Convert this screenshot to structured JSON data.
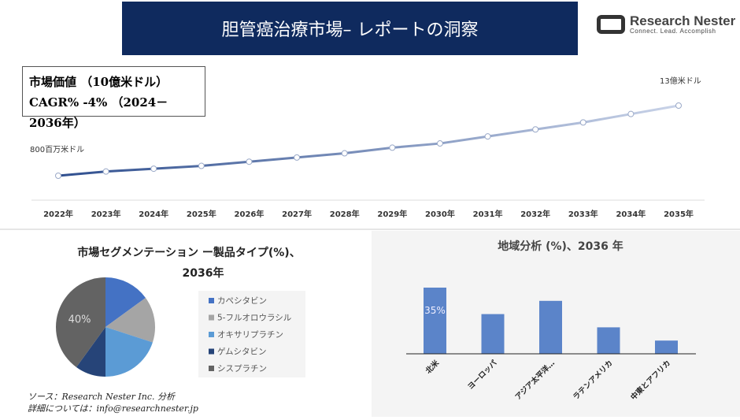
{
  "header": {
    "title": "胆管癌治療市場– レポートの洞察",
    "logo_name": "Research Nester",
    "logo_tagline": "Connect. Lead. Accomplish"
  },
  "key_box": {
    "line1": "市場価値 （10億米ドル）",
    "line2": "CAGR% -4% （2024－2036年）"
  },
  "source": {
    "line1": "ソース：Research Nester Inc. 分析",
    "line2": "詳細については：info@researchnester.jp"
  },
  "chart_data": [
    {
      "type": "line",
      "x": [
        "2022年",
        "2023年",
        "2024年",
        "2025年",
        "2026年",
        "2027年",
        "2028年",
        "2029年",
        "2030年",
        "2031年",
        "2032年",
        "2033年",
        "2034年",
        "2035年"
      ],
      "values": [
        0.8,
        0.83,
        0.85,
        0.87,
        0.9,
        0.93,
        0.96,
        1.0,
        1.03,
        1.08,
        1.13,
        1.18,
        1.24,
        1.3
      ],
      "annotations": {
        "start": "800百万米ドル",
        "end": "13億米ドル"
      },
      "colors": {
        "start": "#2f4f8f",
        "end": "#c9d3e8"
      }
    },
    {
      "type": "pie",
      "title": "市場セグメンテーション ー製品タイプ(%)、",
      "subtitle": "2036年",
      "categories": [
        "カペシタビン",
        "5-フルオロウラシル",
        "オキサリプラチン",
        "ゲムシタビン",
        "シスプラチン"
      ],
      "values": [
        15,
        15,
        20,
        10,
        40
      ],
      "data_labels": [
        "",
        "",
        "",
        "",
        "40%"
      ],
      "colors": [
        "#4472c4",
        "#a5a5a5",
        "#5b9bd5",
        "#264478",
        "#636363"
      ],
      "legend": "right"
    },
    {
      "type": "bar",
      "title": "地域分析 (%)、2036 年",
      "categories": [
        "北米",
        "ヨーロッパ",
        "アジア太平洋…",
        "ラテンアメリカ",
        "中東とアフリカ"
      ],
      "values": [
        35,
        21,
        28,
        14,
        7
      ],
      "data_labels": [
        "35%",
        "",
        "",
        "",
        ""
      ],
      "color": "#5b84c9"
    }
  ]
}
